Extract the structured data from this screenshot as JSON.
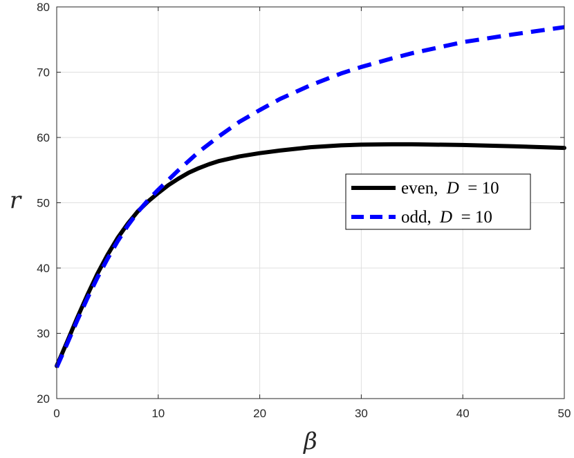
{
  "chart_data": {
    "type": "line",
    "xlabel": "β",
    "ylabel": "r",
    "xlim": [
      0,
      50
    ],
    "ylim": [
      20,
      80
    ],
    "xticks": [
      "0",
      "10",
      "20",
      "30",
      "40",
      "50"
    ],
    "yticks": [
      "20",
      "30",
      "40",
      "50",
      "60",
      "70",
      "80"
    ],
    "grid": true,
    "legend_position": "center-right",
    "series": [
      {
        "name": "even, D = 10",
        "name_parts": {
          "word": "even,",
          "var": "D",
          "rest": " = 10"
        },
        "color": "#000000",
        "style": "solid",
        "x": [
          0,
          1,
          2,
          3,
          4,
          5,
          6,
          7,
          8,
          9,
          10,
          11,
          12,
          13,
          14,
          15,
          16,
          18,
          20,
          22,
          25,
          28,
          30,
          33,
          35,
          40,
          45,
          50
        ],
        "y": [
          25.0,
          28.6,
          32.3,
          35.8,
          39.1,
          42.0,
          44.6,
          46.8,
          48.7,
          50.2,
          51.5,
          52.7,
          53.7,
          54.6,
          55.3,
          55.9,
          56.4,
          57.1,
          57.6,
          58.0,
          58.5,
          58.8,
          58.9,
          58.95,
          58.95,
          58.85,
          58.65,
          58.4
        ]
      },
      {
        "name": "odd, D = 10",
        "name_parts": {
          "word": "odd,",
          "var": "D",
          "rest": " = 10"
        },
        "color": "#0000ff",
        "style": "dashed",
        "x": [
          0,
          1,
          2,
          3,
          4,
          5,
          6,
          7,
          8,
          9,
          10,
          12,
          14,
          16,
          18,
          20,
          22,
          25,
          28,
          30,
          33,
          35,
          40,
          45,
          50
        ],
        "y": [
          24.8,
          28.3,
          31.9,
          35.3,
          38.5,
          41.4,
          44.1,
          46.5,
          48.6,
          50.4,
          52.0,
          55.0,
          57.8,
          60.2,
          62.4,
          64.2,
          65.9,
          68.0,
          69.8,
          70.8,
          72.1,
          72.9,
          74.6,
          75.8,
          76.9
        ]
      }
    ]
  }
}
